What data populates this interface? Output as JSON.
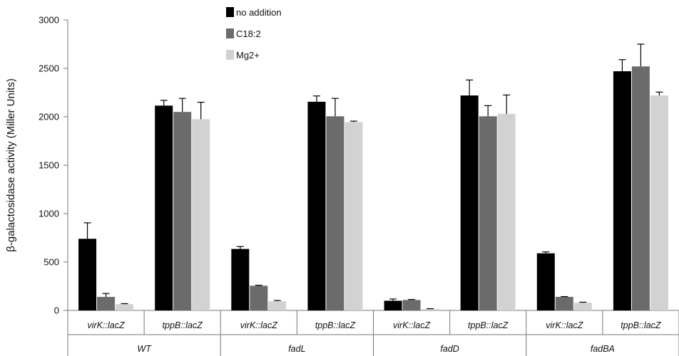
{
  "chart_data": {
    "type": "bar",
    "ylabel": "β-galactosidase activity (Miller Units)",
    "ylim": [
      0,
      3000
    ],
    "yticks": [
      0,
      500,
      1000,
      1500,
      2000,
      2500,
      3000
    ],
    "legend_position": "top-center",
    "grid": false,
    "groups": [
      "WT",
      "fadL",
      "fadD",
      "fadBA"
    ],
    "categories": [
      "virK::lacZ",
      "tppB::lacZ",
      "virK::lacZ",
      "tppB::lacZ",
      "virK::lacZ",
      "tppB::lacZ",
      "virK::lacZ",
      "tppB::lacZ"
    ],
    "series": [
      {
        "name": "no addition",
        "color": "#000000",
        "values": [
          740,
          2115,
          635,
          2155,
          100,
          2220,
          590,
          2470
        ],
        "errors": [
          165,
          55,
          25,
          60,
          18,
          160,
          15,
          120
        ]
      },
      {
        "name": "C18:2",
        "color": "#6b6b6b",
        "values": [
          140,
          2050,
          255,
          2005,
          108,
          2005,
          140,
          2520
        ],
        "errors": [
          35,
          140,
          5,
          185,
          5,
          110,
          3,
          230
        ]
      },
      {
        "name": "Mg2+",
        "color": "#d2d2d2",
        "values": [
          65,
          1975,
          95,
          1945,
          15,
          2030,
          80,
          2220
        ],
        "errors": [
          5,
          175,
          8,
          10,
          3,
          195,
          5,
          35
        ]
      }
    ]
  }
}
